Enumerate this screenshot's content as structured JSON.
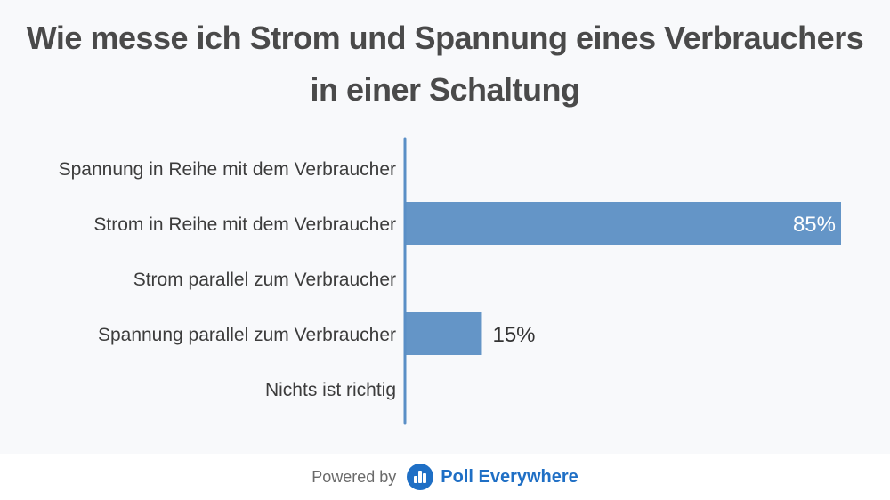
{
  "chart_data": {
    "type": "bar",
    "orientation": "horizontal",
    "title_lines": [
      "Wie messe ich Strom und Spannung eines Verbrauchers",
      "in einer Schaltung"
    ],
    "categories": [
      "Spannung in Reihe mit dem Verbraucher",
      "Strom in Reihe mit dem Verbraucher",
      "Strom parallel zum Verbraucher",
      "Spannung parallel zum Verbraucher",
      "Nichts ist richtig"
    ],
    "values": [
      0,
      85,
      0,
      15,
      0
    ],
    "value_labels": [
      "",
      "85%",
      "",
      "15%",
      ""
    ],
    "xlim": [
      0,
      85
    ],
    "bar_color": "#6495c7",
    "axis_color": "#5a8fc6",
    "grid": false,
    "legend": "none"
  },
  "footer": {
    "powered_by": "Powered by",
    "brand": "Poll Everywhere",
    "brand_color": "#1f6fc5",
    "logo_icon": "poll-everywhere-logo-icon"
  }
}
